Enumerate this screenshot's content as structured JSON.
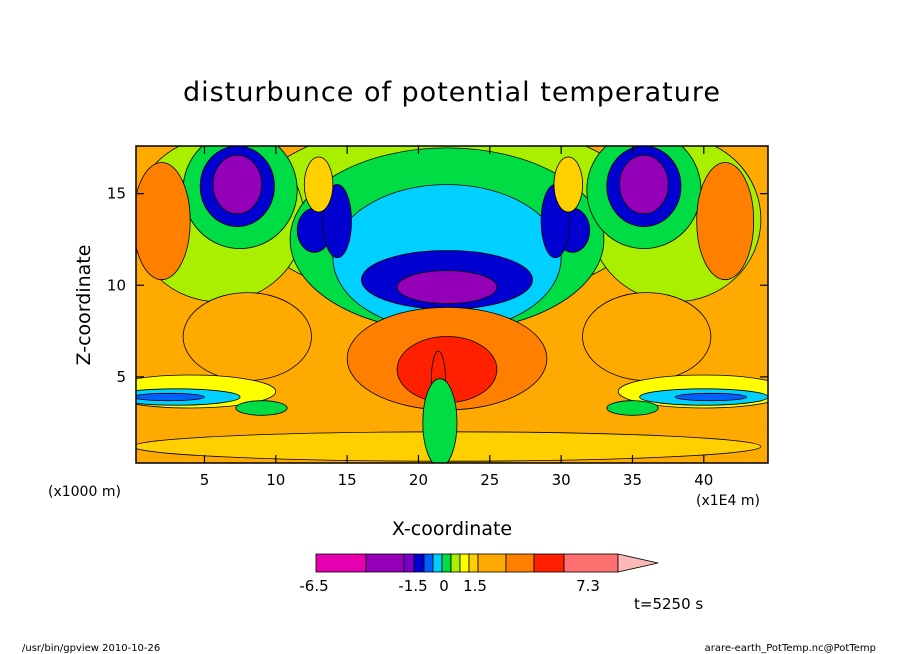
{
  "chart_data": {
    "type": "heatmap",
    "title": "disturbunce of potential temperature",
    "xlabel": "X-coordinate",
    "ylabel": "Z-coordinate",
    "x_unit_left": "(x1000 m)",
    "x_unit_right": "(x1E4 m)",
    "xlim": [
      0.2,
      44.5
    ],
    "ylim": [
      0.3,
      17.6
    ],
    "x_ticks": [
      5,
      10,
      15,
      20,
      25,
      30,
      35,
      40
    ],
    "y_ticks": [
      5,
      10,
      15
    ],
    "colorbar": {
      "labels": [
        "-6.5",
        "-1.5",
        "0",
        "1.5",
        "7.3"
      ],
      "colors": [
        "#e600b0",
        "#9400b8",
        "#7a00c8",
        "#0000d0",
        "#0060ff",
        "#00d0ff",
        "#00dd44",
        "#aaee00",
        "#ffff00",
        "#ffd000",
        "#ffaa00",
        "#ff8000",
        "#ff2000",
        "#ff7070",
        "#ffb8b8"
      ]
    },
    "field_features": [
      {
        "kind": "min",
        "x": 7.2,
        "z": 15.5,
        "value": -6.5
      },
      {
        "kind": "min",
        "x": 35.8,
        "z": 15.5,
        "value": -6.5
      },
      {
        "kind": "min",
        "x": 21.8,
        "z": 9.8,
        "value": -6.0
      },
      {
        "kind": "min",
        "x": 12.7,
        "z": 13.0,
        "value": -3.0
      },
      {
        "kind": "min",
        "x": 30.8,
        "z": 13.0,
        "value": -3.0
      },
      {
        "kind": "max",
        "x": 2.0,
        "z": 13.5,
        "value": 1.6
      },
      {
        "kind": "max",
        "x": 41.5,
        "z": 13.5,
        "value": 1.6
      },
      {
        "kind": "max",
        "x": 21.4,
        "z": 4.8,
        "value": 7.3
      },
      {
        "kind": "min",
        "x": 3.0,
        "z": 3.9,
        "value": -1.5
      },
      {
        "kind": "min",
        "x": 40.0,
        "z": 3.9,
        "value": -1.5
      }
    ],
    "time_label": "t=5250 s"
  },
  "footer": {
    "left": "/usr/bin/gpview  2010-10-26",
    "right": "arare-earth_PotTemp.nc@PotTemp"
  }
}
